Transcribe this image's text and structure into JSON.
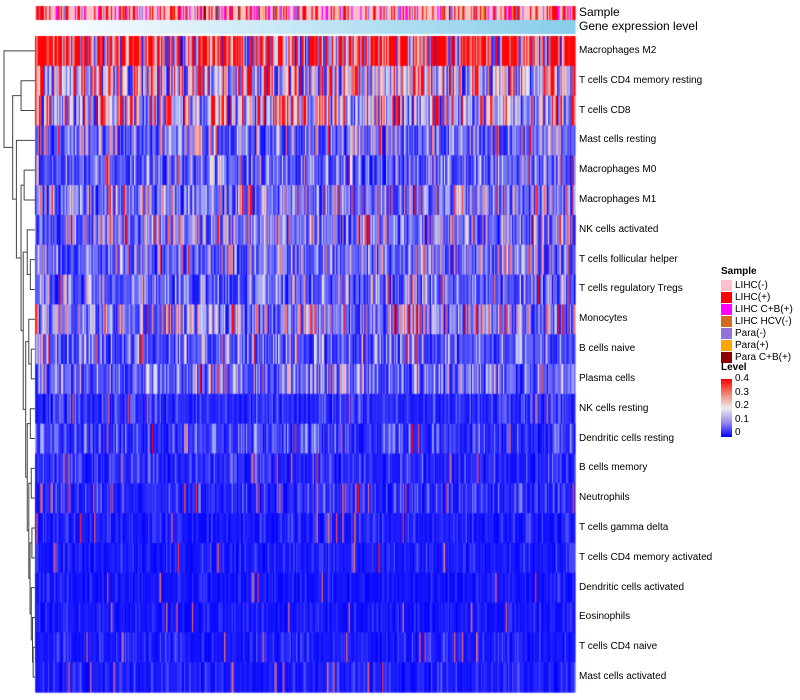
{
  "annotations": {
    "sample_label": "Sample",
    "gene_label": "Gene expression level"
  },
  "chart_data": {
    "type": "heatmap",
    "rows": [
      "Macrophages M2",
      "T cells CD4 memory resting",
      "T cells CD8",
      "Mast cells resting",
      "Macrophages M0",
      "Macrophages M1",
      "NK cells activated",
      "T cells follicular helper",
      "T cells regulatory  Tregs",
      "Monocytes",
      "B cells naive",
      "Plasma cells",
      "NK cells resting",
      "Dendritic cells resting",
      "B cells memory",
      "Neutrophils",
      "T cells gamma delta",
      "T cells CD4 memory activated",
      "Dendritic cells activated",
      "Eosinophils",
      "T cells CD4 naive",
      "Mast cells activated"
    ],
    "row_mean_level": [
      0.32,
      0.17,
      0.15,
      0.08,
      0.07,
      0.1,
      0.09,
      0.08,
      0.07,
      0.1,
      0.06,
      0.07,
      0.03,
      0.04,
      0.03,
      0.03,
      0.02,
      0.02,
      0.015,
      0.015,
      0.02,
      0.02
    ],
    "n_columns": 420,
    "color_scale": {
      "min": 0,
      "max": 0.4,
      "low": "#0000ff",
      "mid": "#eeeeee",
      "high": "#ff0000"
    }
  },
  "legend": {
    "sample_title": "Sample",
    "samples": [
      {
        "label": "LIHC(-)",
        "color": "#ffc0cb"
      },
      {
        "label": "LIHC(+)",
        "color": "#ff0000"
      },
      {
        "label": "LIHC C+B(+)",
        "color": "#ff00ff"
      },
      {
        "label": "LIHC HCV(-)",
        "color": "#d2691e"
      },
      {
        "label": "Para(-)",
        "color": "#9370db"
      },
      {
        "label": "Para(+)",
        "color": "#ffa500"
      },
      {
        "label": "Para C+B(+)",
        "color": "#8b0000"
      }
    ],
    "level_title": "Level",
    "level_ticks": [
      "0.4",
      "0.3",
      "0.2",
      "0.1",
      "0"
    ]
  }
}
